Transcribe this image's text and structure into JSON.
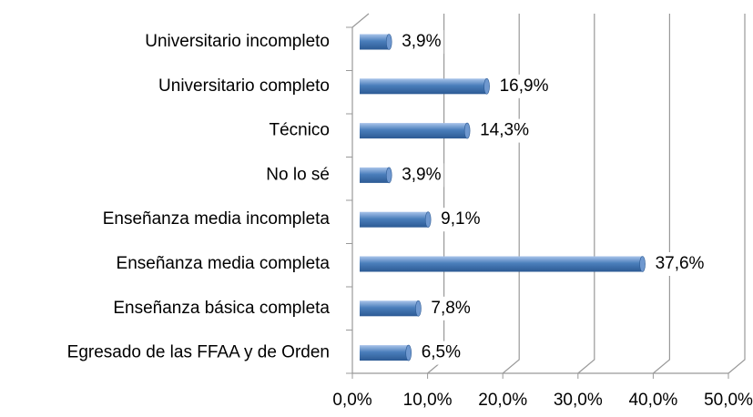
{
  "chart_data": {
    "type": "bar",
    "orientation": "horizontal",
    "categories": [
      "Universitario incompleto",
      "Universitario completo",
      "Técnico",
      "No lo sé",
      "Enseñanza media incompleta",
      "Enseñanza media completa",
      "Enseñanza básica completa",
      "Egresado de las FFAA y de Orden"
    ],
    "values": [
      3.9,
      16.9,
      14.3,
      3.9,
      9.1,
      37.6,
      7.8,
      6.5
    ],
    "value_labels": [
      "3,9%",
      "16,9%",
      "14,3%",
      "3,9%",
      "9,1%",
      "37,6%",
      "7,8%",
      "6,5%"
    ],
    "color": "#4a7ebb",
    "xlim": [
      0,
      50
    ],
    "xticks": [
      {
        "value": 0,
        "label": "0,0%"
      },
      {
        "value": 10,
        "label": "10,0%"
      },
      {
        "value": 20,
        "label": "20,0%"
      },
      {
        "value": 30,
        "label": "30,0%"
      },
      {
        "value": 40,
        "label": "40,0%"
      },
      {
        "value": 50,
        "label": "50,0%"
      }
    ],
    "grid": true
  }
}
